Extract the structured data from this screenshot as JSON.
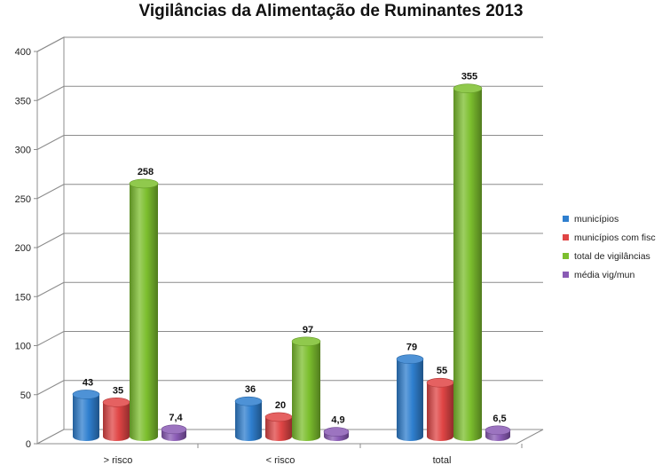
{
  "chart_data": {
    "type": "bar",
    "style": "3d-cylinder",
    "title": "Vigilâncias da Alimentação de Ruminantes 2013",
    "xlabel": "",
    "ylabel": "",
    "categories": [
      "> risco",
      "< risco",
      "total"
    ],
    "ylim": [
      0,
      400
    ],
    "yticks": [
      0,
      50,
      100,
      150,
      200,
      250,
      300,
      350,
      400
    ],
    "grid": true,
    "legend_position": "right",
    "series": [
      {
        "name": "municípios",
        "color": "#2f7fcf",
        "values": [
          43,
          36,
          79
        ],
        "labels": [
          "43",
          "36",
          "79"
        ]
      },
      {
        "name": "municípios com fisc",
        "color": "#e04545",
        "values": [
          35,
          20,
          55
        ],
        "labels": [
          "35",
          "20",
          "55"
        ]
      },
      {
        "name": "total de vigilâncias",
        "color": "#7cbf2e",
        "values": [
          258,
          97,
          355
        ],
        "labels": [
          "258",
          "97",
          "355"
        ]
      },
      {
        "name": "média vig/mun",
        "color": "#8a5bb5",
        "values": [
          7.4,
          4.9,
          6.5
        ],
        "labels": [
          "7,4",
          "4,9",
          "6,5"
        ]
      }
    ]
  }
}
